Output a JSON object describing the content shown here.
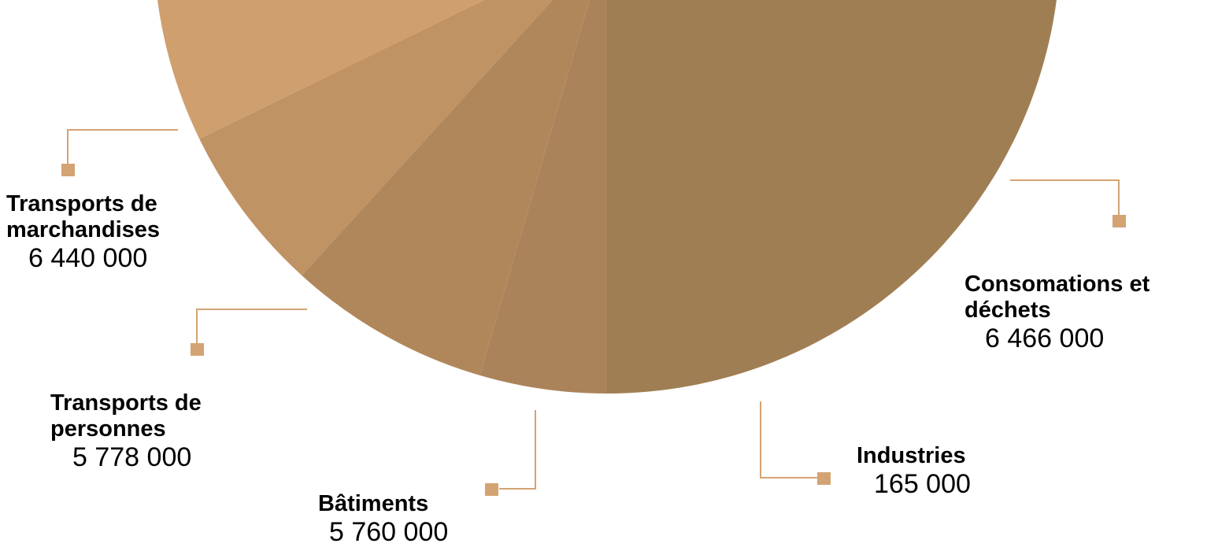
{
  "chart_data": {
    "type": "pie",
    "title": "",
    "slices": [
      {
        "label": "Transports de\nmarchandises",
        "value": "6 440 000",
        "color": "#cf9f6d"
      },
      {
        "label": "Transports de\npersonnes",
        "value": "5 778 000",
        "color": "#c09364"
      },
      {
        "label": "Bâtiments",
        "value": "5 760 000",
        "color": "#b0875b"
      },
      {
        "label": "Industries",
        "value": "165 000",
        "color": "#aa835a"
      },
      {
        "label": "Consomations et\ndéchets",
        "value": "6 466 000",
        "color": "#a07e54"
      }
    ],
    "leader_color": "#d4a373"
  }
}
